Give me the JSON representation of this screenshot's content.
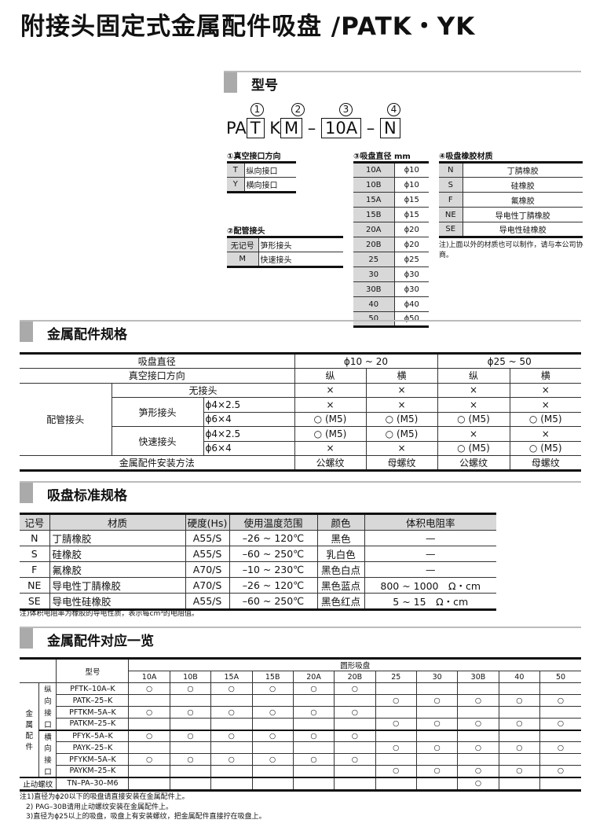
{
  "title": "附接头固定式金属配件吸盘 /PATK・YK",
  "model": {
    "heading": "型号",
    "markers": [
      "1",
      "2",
      "3",
      "4"
    ],
    "code": {
      "prefix": "PA",
      "p1": "T",
      "k": "K",
      "p2": "M",
      "dash": "–",
      "p3": "10A",
      "p4": "N"
    },
    "dir": {
      "caption": "①真空接口方向",
      "rows": [
        [
          "T",
          "纵向接口"
        ],
        [
          "Y",
          "横向接口"
        ]
      ]
    },
    "fitting": {
      "caption": "②配管接头",
      "rows": [
        [
          "无记号",
          "笋形接头"
        ],
        [
          "M",
          "快速接头"
        ]
      ]
    },
    "diameter": {
      "caption": "③吸盘直径 mm",
      "rows": [
        [
          "10A",
          "ϕ10"
        ],
        [
          "10B",
          "ϕ10"
        ],
        [
          "15A",
          "ϕ15"
        ],
        [
          "15B",
          "ϕ15"
        ],
        [
          "20A",
          "ϕ20"
        ],
        [
          "20B",
          "ϕ20"
        ],
        [
          "25",
          "ϕ25"
        ],
        [
          "30",
          "ϕ30"
        ],
        [
          "30B",
          "ϕ30"
        ],
        [
          "40",
          "ϕ40"
        ],
        [
          "50",
          "ϕ50"
        ]
      ]
    },
    "rubber": {
      "caption": "④吸盘橡胶材质",
      "rows": [
        [
          "N",
          "丁腈橡胶"
        ],
        [
          "S",
          "硅橡胶"
        ],
        [
          "F",
          "氟橡胶"
        ],
        [
          "NE",
          "导电性丁腈橡胶"
        ],
        [
          "SE",
          "导电性硅橡胶"
        ]
      ],
      "note": "注)上面以外的材质也可以制作，请与本公司协商。"
    }
  },
  "spec": {
    "heading": "金属配件规格",
    "r1": [
      "吸盘直径",
      "ϕ10 ~ 20",
      "ϕ25 ~ 50"
    ],
    "r2": [
      "真空接口方向",
      "纵",
      "横",
      "纵",
      "横"
    ],
    "group": "配管接头",
    "none": [
      "无接头",
      "×",
      "×",
      "×",
      "×"
    ],
    "barb": "笋形接头",
    "barb1": [
      "ϕ4×2.5",
      "×",
      "×",
      "×",
      "×"
    ],
    "barb2": [
      "ϕ6×4",
      "○ (M5)",
      "○ (M5)",
      "○ (M5)",
      "○ (M5)"
    ],
    "quick": "快速接头",
    "quick1": [
      "ϕ4×2.5",
      "○ (M5)",
      "○ (M5)",
      "×",
      "×"
    ],
    "quick2": [
      "ϕ6×4",
      "×",
      "×",
      "○ (M5)",
      "○ (M5)"
    ],
    "mount": [
      "金属配件安装方法",
      "公螺纹",
      "母螺纹",
      "公螺纹",
      "母螺纹"
    ]
  },
  "standard": {
    "heading": "吸盘标准规格",
    "headers": [
      "记号",
      "材质",
      "硬度(Hs)",
      "使用温度范围",
      "颜色",
      "体积电阻率"
    ],
    "rows": [
      [
        "N",
        "丁腈橡胶",
        "A55/S",
        "–26 ~ 120℃",
        "黑色",
        "—"
      ],
      [
        "S",
        "硅橡胶",
        "A55/S",
        "–60 ~ 250℃",
        "乳白色",
        "—"
      ],
      [
        "F",
        "氟橡胶",
        "A70/S",
        "–10 ~ 230℃",
        "黑色白点",
        "—"
      ],
      [
        "NE",
        "导电性丁腈橡胶",
        "A70/S",
        "–26 ~ 120℃",
        "黑色蓝点",
        "800 ~ 1000　Ω・cm"
      ],
      [
        "SE",
        "导电性硅橡胶",
        "A55/S",
        "–60 ~ 250℃",
        "黑色红点",
        "5 ~ 15　Ω・cm"
      ]
    ],
    "note": "注)体积电阻率为橡胶的导电性质，表示每cm³的电阻值。"
  },
  "compat": {
    "heading": "金属配件对应一览",
    "model_label": "型号",
    "pad_label": "圆形吸盘",
    "sizes": [
      "10A",
      "10B",
      "15A",
      "15B",
      "20A",
      "20B",
      "25",
      "30",
      "30B",
      "40",
      "50"
    ],
    "group_label": [
      "金",
      "属",
      "配",
      "件"
    ],
    "vert_label": [
      "纵",
      "向",
      "接",
      "口"
    ],
    "horiz_label": [
      "横",
      "向",
      "接",
      "口"
    ],
    "rows": [
      {
        "model": "PFTK–10A–K",
        "marks": [
          1,
          1,
          1,
          1,
          1,
          1,
          0,
          0,
          0,
          0,
          0
        ]
      },
      {
        "model": "PATK–25–K",
        "marks": [
          0,
          0,
          0,
          0,
          0,
          0,
          1,
          1,
          1,
          1,
          1
        ]
      },
      {
        "model": "PFTKM–5A–K",
        "marks": [
          1,
          1,
          1,
          1,
          1,
          1,
          0,
          0,
          0,
          0,
          0
        ]
      },
      {
        "model": "PATKM–25–K",
        "marks": [
          0,
          0,
          0,
          0,
          0,
          0,
          1,
          1,
          1,
          1,
          1
        ]
      },
      {
        "model": "PFYK–5A–K",
        "marks": [
          1,
          1,
          1,
          1,
          1,
          1,
          0,
          0,
          0,
          0,
          0
        ]
      },
      {
        "model": "PAYK–25–K",
        "marks": [
          0,
          0,
          0,
          0,
          0,
          0,
          1,
          1,
          1,
          1,
          1
        ]
      },
      {
        "model": "PFYKM–5A–K",
        "marks": [
          1,
          1,
          1,
          1,
          1,
          1,
          0,
          0,
          0,
          0,
          0
        ]
      },
      {
        "model": "PAYKM–25–K",
        "marks": [
          0,
          0,
          0,
          0,
          0,
          0,
          1,
          1,
          1,
          1,
          1
        ]
      }
    ],
    "stop": {
      "label": "止动螺纹",
      "model": "TN–PA–30–M6",
      "marks": [
        0,
        0,
        0,
        0,
        0,
        0,
        0,
        0,
        1,
        0,
        0
      ]
    },
    "mark": "○",
    "notes": [
      "注1)直径为ϕ20以下的吸盘请直接安装在金属配件上。",
      "2) PAG–30B请用止动螺纹安装在金属配件上。",
      "3)直径为ϕ25以上的吸盘，吸盘上有安装螺纹，把金属配件直接拧在吸盘上。"
    ]
  }
}
